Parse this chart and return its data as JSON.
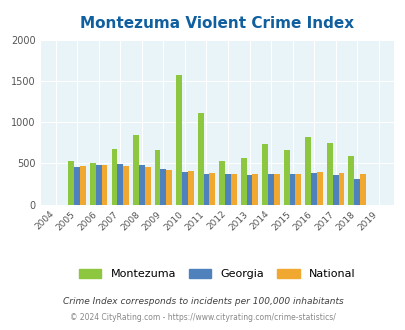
{
  "title": "Montezuma Violent Crime Index",
  "years": [
    2004,
    2005,
    2006,
    2007,
    2008,
    2009,
    2010,
    2011,
    2012,
    2013,
    2014,
    2015,
    2016,
    2017,
    2018,
    2019
  ],
  "montezuma": [
    0,
    530,
    500,
    670,
    840,
    660,
    1575,
    1105,
    530,
    560,
    730,
    660,
    825,
    750,
    595,
    0
  ],
  "georgia": [
    0,
    460,
    480,
    490,
    475,
    430,
    400,
    365,
    370,
    355,
    365,
    365,
    385,
    360,
    315,
    0
  ],
  "national": [
    0,
    470,
    475,
    465,
    455,
    425,
    405,
    385,
    365,
    370,
    370,
    370,
    390,
    385,
    375,
    0
  ],
  "color_montezuma": "#8dc63f",
  "color_georgia": "#4f81bd",
  "color_national": "#f0a830",
  "bg_color": "#e8f4f8",
  "ylim": [
    0,
    2000
  ],
  "yticks": [
    0,
    500,
    1000,
    1500,
    2000
  ],
  "footnote1": "Crime Index corresponds to incidents per 100,000 inhabitants",
  "footnote2": "© 2024 CityRating.com - https://www.cityrating.com/crime-statistics/",
  "title_color": "#1060a0",
  "footnote1_color": "#404040",
  "footnote2_color": "#888888"
}
